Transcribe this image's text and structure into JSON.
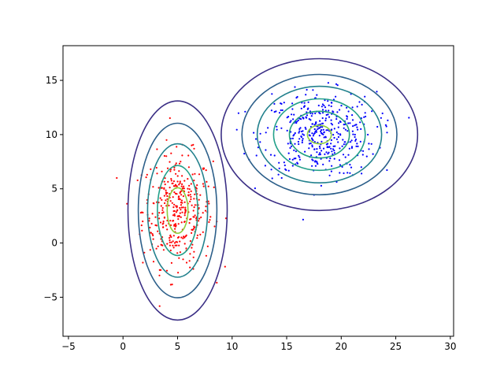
{
  "chart_data": {
    "type": "scatter",
    "title": "",
    "xlabel": "",
    "ylabel": "",
    "xlim": [
      -5.5,
      30.3
    ],
    "ylim": [
      -8.6,
      18.2
    ],
    "xticks": [
      -5,
      0,
      5,
      10,
      15,
      20,
      25,
      30
    ],
    "yticks": [
      -5,
      0,
      5,
      10,
      15
    ],
    "grid": false,
    "legend": "none",
    "clusters": [
      {
        "name": "",
        "color": "#ff0000",
        "center": [
          5,
          3
        ],
        "std": [
          1.6,
          2.6
        ],
        "count": 380
      },
      {
        "name": "",
        "color": "#0000ff",
        "center": [
          18,
          10
        ],
        "std": [
          2.6,
          1.95
        ],
        "count": 420
      }
    ],
    "contours": [
      {
        "center": [
          5,
          3
        ],
        "levels": [
          {
            "rx": 4.55,
            "ry": 10.1,
            "color": "#3b2f85"
          },
          {
            "rx": 3.6,
            "ry": 8.05,
            "color": "#2c5f8a"
          },
          {
            "rx": 2.75,
            "ry": 6.15,
            "color": "#22818d"
          },
          {
            "rx": 1.85,
            "ry": 4.15,
            "color": "#23a08a"
          },
          {
            "rx": 0.95,
            "ry": 2.1,
            "color": "#8dce3e"
          }
        ]
      },
      {
        "center": [
          18,
          10
        ],
        "levels": [
          {
            "rx": 9.0,
            "ry": 7.0,
            "color": "#3b2f85"
          },
          {
            "rx": 7.1,
            "ry": 5.55,
            "color": "#2c5f8a"
          },
          {
            "rx": 5.7,
            "ry": 4.45,
            "color": "#22818d"
          },
          {
            "rx": 4.2,
            "ry": 3.3,
            "color": "#23a08a"
          },
          {
            "rx": 2.75,
            "ry": 2.15,
            "color": "#21a17f"
          },
          {
            "rx": 1.1,
            "ry": 0.85,
            "color": "#8dce3e"
          }
        ]
      }
    ]
  }
}
